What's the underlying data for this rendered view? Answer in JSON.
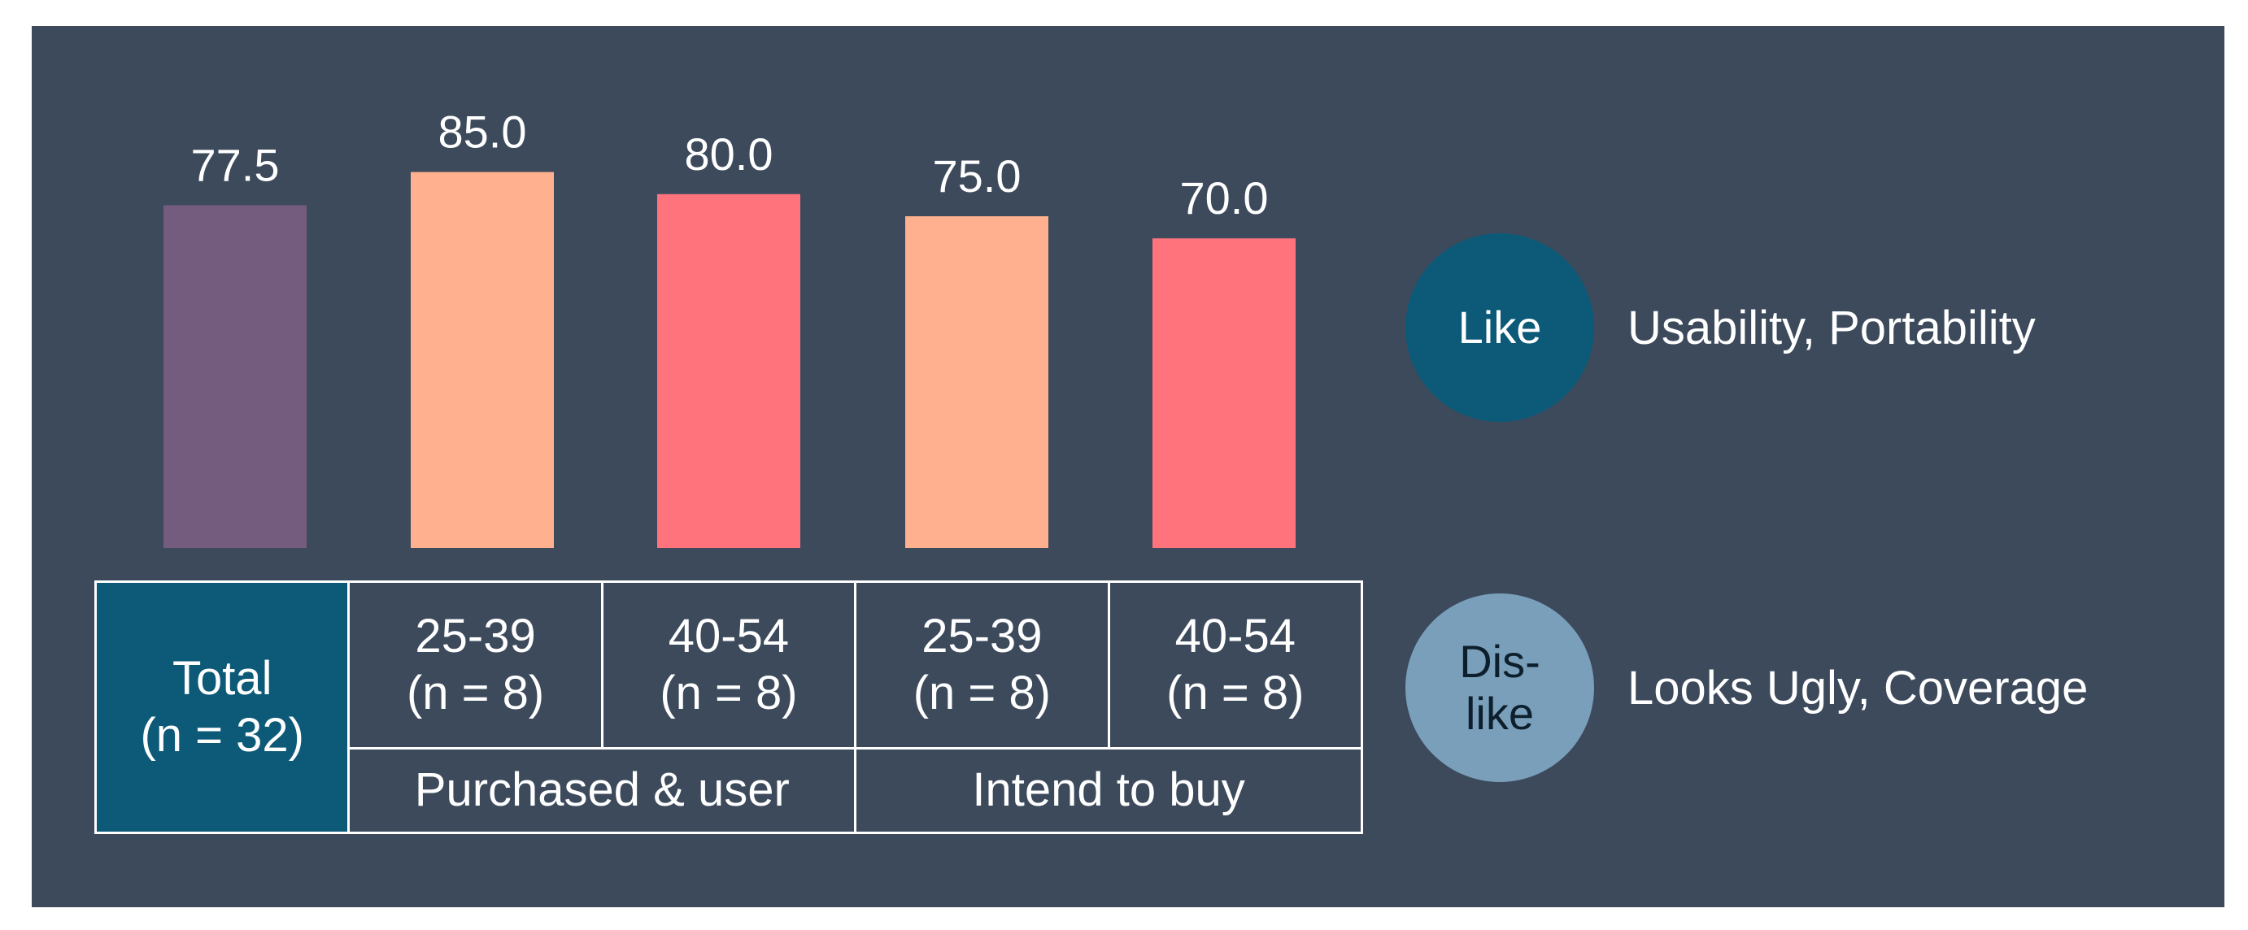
{
  "chart_data": {
    "type": "bar",
    "title": "",
    "xlabel": "",
    "ylabel": "",
    "ylim": [
      0,
      100
    ],
    "categories": [
      {
        "line1": "Total",
        "line2": "(n = 32)"
      },
      {
        "line1": "25-39",
        "line2": "(n = 8)"
      },
      {
        "line1": "40-54",
        "line2": "(n = 8)"
      },
      {
        "line1": "25-39",
        "line2": "(n = 8)"
      },
      {
        "line1": "40-54",
        "line2": "(n = 8)"
      }
    ],
    "groups": [
      "Purchased & user",
      "Intend to buy"
    ],
    "values": [
      77.5,
      85.0,
      80.0,
      75.0,
      70.0
    ],
    "value_labels": [
      "77.5",
      "85.0",
      "80.0",
      "75.0",
      "70.0"
    ],
    "bar_colors": [
      "#735c7e",
      "#ffb08e",
      "#fe737c",
      "#ffb08e",
      "#fe737c"
    ],
    "grid": false
  },
  "legend": {
    "like": {
      "badge": "Like",
      "text": "Usability, Portability",
      "color": "#0c5a78"
    },
    "dislike": {
      "badge_line1": "Dis-",
      "badge_line2": "like",
      "text": "Looks Ugly, Coverage",
      "color": "#7a9fba"
    }
  },
  "colors": {
    "background": "#3c4a5c",
    "total_cell": "#0c5a78",
    "text": "#ffffff"
  }
}
